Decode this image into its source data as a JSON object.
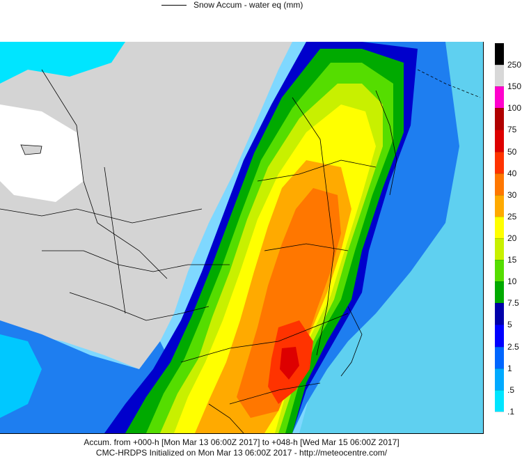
{
  "legend": {
    "series_label": "Snow Accum - water eq (mm)"
  },
  "colorbar": {
    "labels": [
      "250",
      "150",
      "100",
      "75",
      "50",
      "40",
      "30",
      "25",
      "20",
      "15",
      "10",
      "7.5",
      "5",
      "2.5",
      "1",
      ".5",
      ".1"
    ],
    "colors": [
      "#000000",
      "#d8d8d8",
      "#ff00cc",
      "#b00000",
      "#dd0000",
      "#ff3300",
      "#ff7700",
      "#ffaa00",
      "#ffff00",
      "#c8f000",
      "#55dd00",
      "#00aa00",
      "#0000aa",
      "#0000ff",
      "#0066ff",
      "#00aaff",
      "#00e5ff",
      "#ffffff"
    ]
  },
  "footer": {
    "line1": "Accum. from +000-h [Mon Mar 13 06:00Z 2017] to +048-h [Wed Mar 15 06:00Z 2017]",
    "line2": "CMC-HRDPS Initialized on Mon Mar 13 06:00Z 2017 - http://meteocentre.com/"
  }
}
